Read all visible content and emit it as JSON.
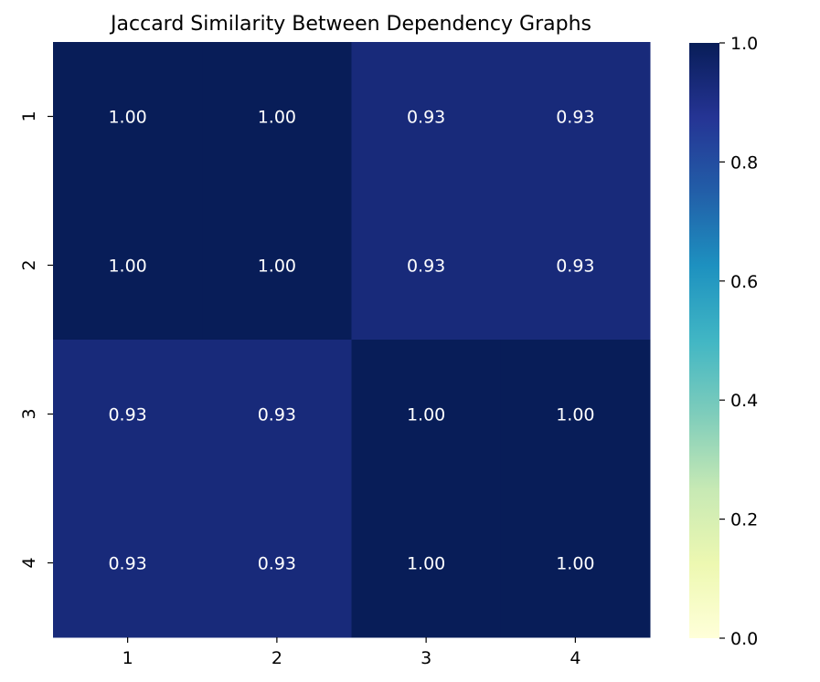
{
  "chart_data": {
    "type": "heatmap",
    "title": "Jaccard Similarity Between Dependency Graphs",
    "xlabel": "",
    "ylabel": "",
    "x_categories": [
      "1",
      "2",
      "3",
      "4"
    ],
    "y_categories": [
      "1",
      "2",
      "3",
      "4"
    ],
    "matrix": [
      [
        1.0,
        1.0,
        0.93,
        0.93
      ],
      [
        1.0,
        1.0,
        0.93,
        0.93
      ],
      [
        0.93,
        0.93,
        1.0,
        1.0
      ],
      [
        0.93,
        0.93,
        1.0,
        1.0
      ]
    ],
    "annotation_format": "0.00",
    "colormap": "YlGnBu",
    "colorbar": {
      "range": [
        0.0,
        1.0
      ],
      "ticks": [
        0.0,
        0.2,
        0.4,
        0.6,
        0.8,
        1.0
      ],
      "tick_labels": [
        "0.0",
        "0.2",
        "0.4",
        "0.6",
        "0.8",
        "1.0"
      ]
    }
  },
  "colors": {
    "annotation_text": "#ffffff",
    "axis_text": "#000000",
    "colormap_stops": [
      "#ffffd9",
      "#edf8b1",
      "#c7e9b4",
      "#7fcdbb",
      "#41b6c4",
      "#1d91c0",
      "#225ea8",
      "#253494",
      "#081d58"
    ]
  }
}
